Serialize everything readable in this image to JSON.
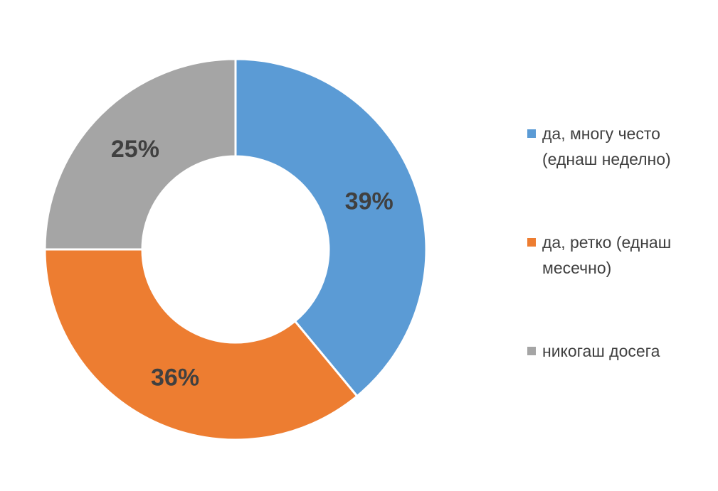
{
  "chart_data": {
    "type": "pie",
    "title": "",
    "slices": [
      {
        "label": "да, многу често (еднаш неделно)",
        "value": 39,
        "display": "39%",
        "color": "#5B9BD5"
      },
      {
        "label": "да, ретко (еднаш месечно)",
        "value": 36,
        "display": "36%",
        "color": "#ED7D31"
      },
      {
        "label": "никогаш досега",
        "value": 25,
        "display": "25%",
        "color": "#A5A5A5"
      }
    ],
    "legend_position": "right"
  }
}
